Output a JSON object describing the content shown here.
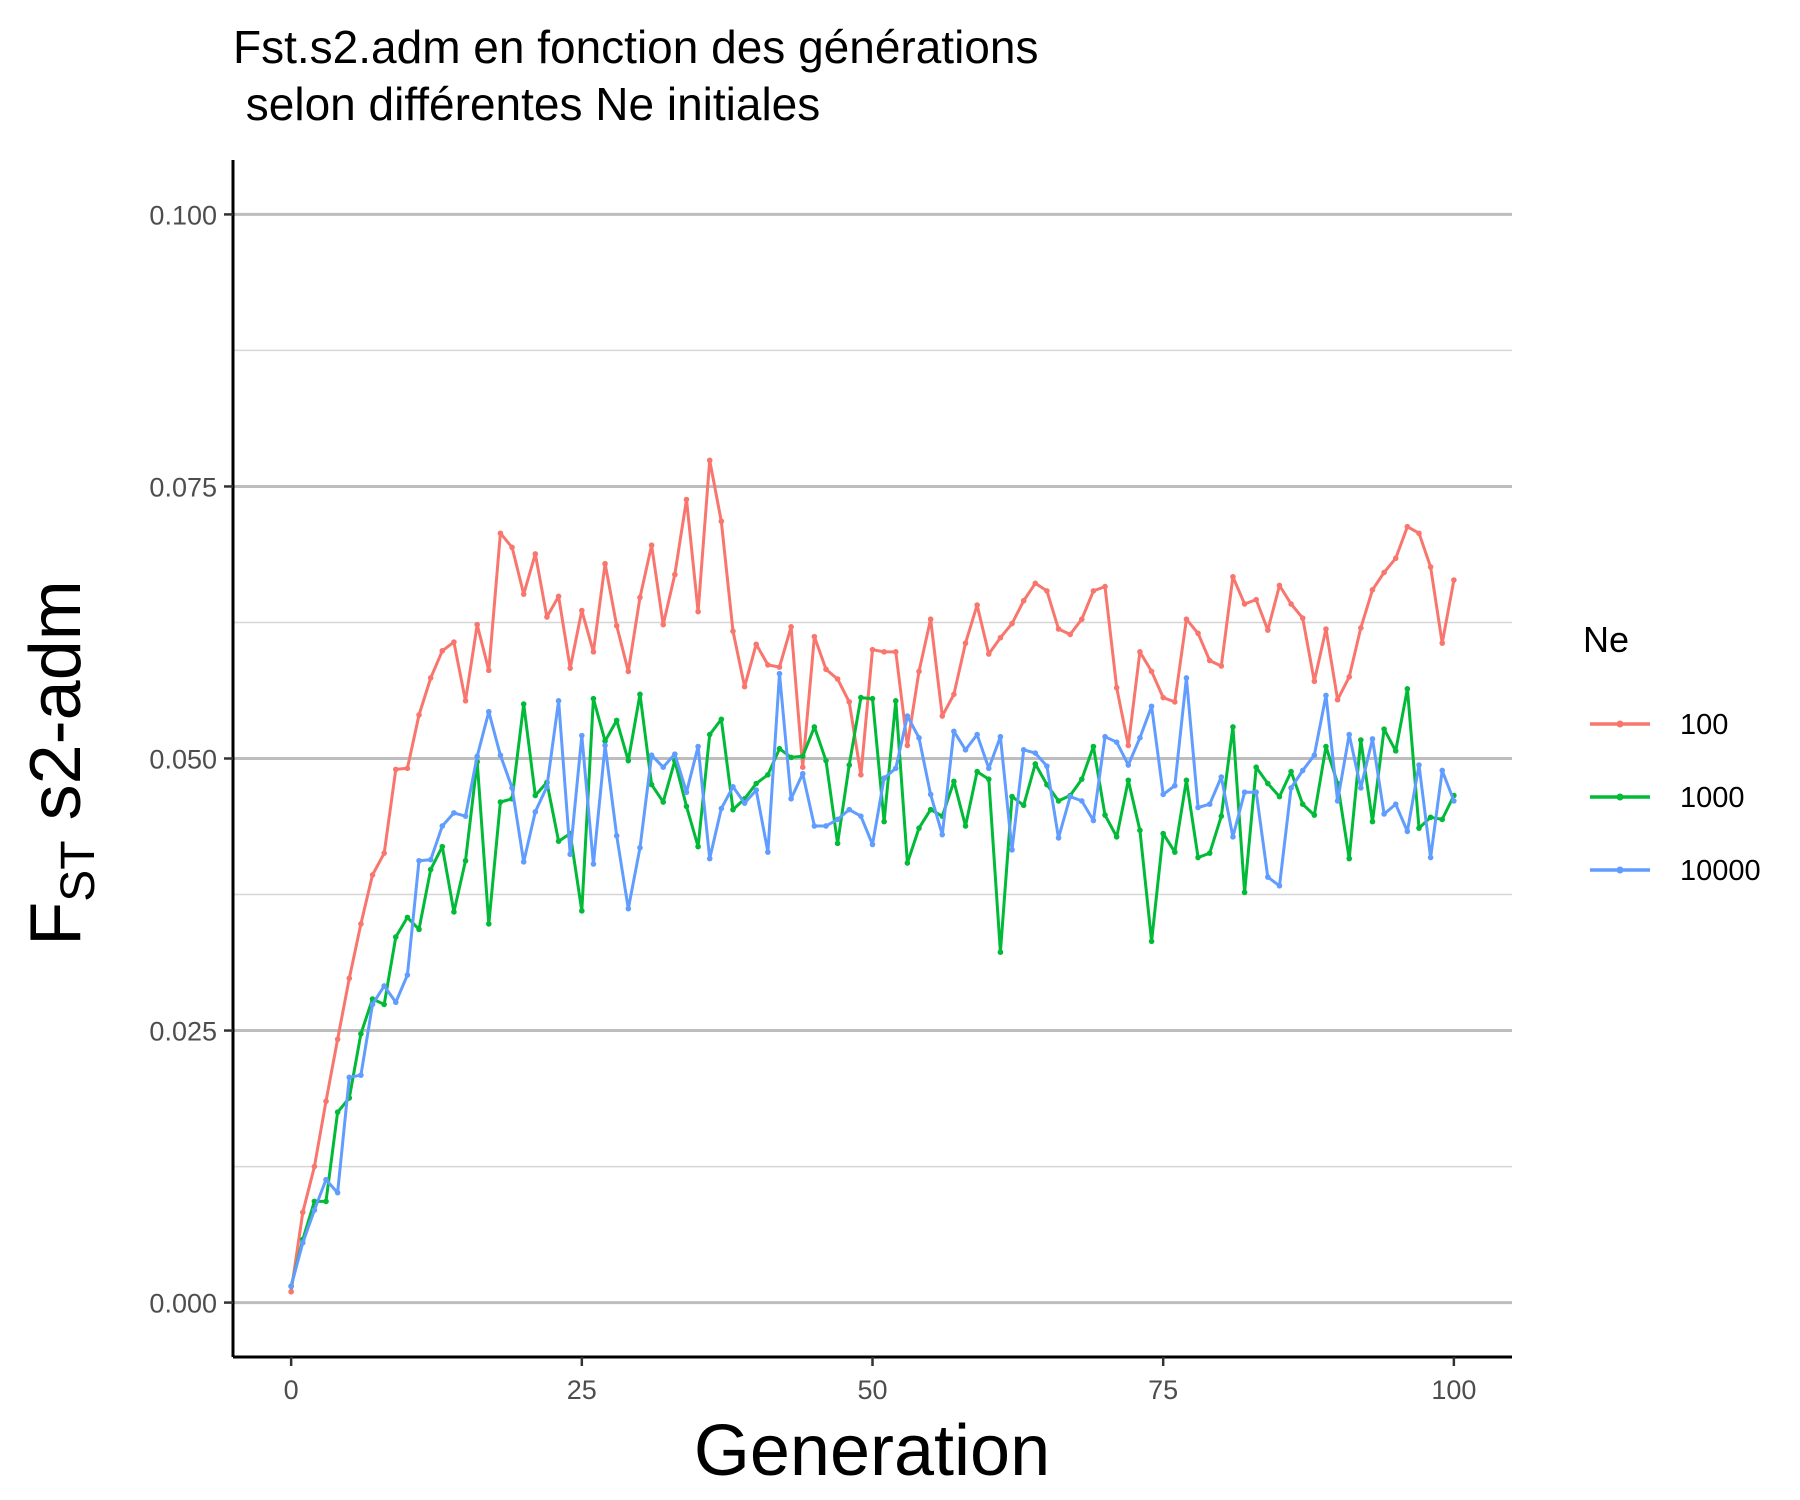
{
  "chart_data": {
    "type": "line",
    "title_line1": "Fst.s2.adm en fonction des générations",
    "title_line2": " selon différentes Ne initiales",
    "xlabel": "Generation",
    "ylabel_main": "F",
    "ylabel_sub": "ST",
    "ylabel_rest": " s2-adm",
    "xlim": [
      -5,
      105
    ],
    "ylim": [
      -0.005,
      0.105
    ],
    "x_ticks": [
      0,
      25,
      50,
      75,
      100
    ],
    "x_tick_labels": [
      "0",
      "25",
      "50",
      "75",
      "100"
    ],
    "y_ticks": [
      0,
      0.025,
      0.05,
      0.075,
      0.1
    ],
    "y_tick_labels": [
      "0.000",
      "0.025",
      "0.050",
      "0.075",
      "0.100"
    ],
    "y_minor_gridlines": [
      0.0125,
      0.0375,
      0.0625,
      0.0875
    ],
    "grid": "horizontal",
    "legend_title": "Ne",
    "legend_position": "right",
    "x": [
      0,
      1,
      2,
      3,
      4,
      5,
      6,
      7,
      8,
      9,
      10,
      11,
      12,
      13,
      14,
      15,
      16,
      17,
      18,
      19,
      20,
      21,
      22,
      23,
      24,
      25,
      26,
      27,
      28,
      29,
      30,
      31,
      32,
      33,
      34,
      35,
      36,
      37,
      38,
      39,
      40,
      41,
      42,
      43,
      44,
      45,
      46,
      47,
      48,
      49,
      50,
      51,
      52,
      53,
      54,
      55,
      56,
      57,
      58,
      59,
      60,
      61,
      62,
      63,
      64,
      65,
      66,
      67,
      68,
      69,
      70,
      71,
      72,
      73,
      74,
      75,
      76,
      77,
      78,
      79,
      80,
      81,
      82,
      83,
      84,
      85,
      86,
      87,
      88,
      89,
      90,
      91,
      92,
      93,
      94,
      95,
      96,
      97,
      98,
      99,
      100
    ],
    "series": [
      {
        "name": "100",
        "color": "#F8766D",
        "values": [
          0.001,
          0.0083,
          0.0125,
          0.0185,
          0.0242,
          0.0298,
          0.0348,
          0.0393,
          0.0413,
          0.049,
          0.0491,
          0.054,
          0.0574,
          0.0599,
          0.0607,
          0.0553,
          0.0623,
          0.0581,
          0.0707,
          0.0694,
          0.0651,
          0.0688,
          0.063,
          0.0649,
          0.0583,
          0.0636,
          0.0598,
          0.0679,
          0.0622,
          0.058,
          0.0648,
          0.0696,
          0.0623,
          0.0669,
          0.0738,
          0.0635,
          0.0774,
          0.0718,
          0.0617,
          0.0566,
          0.0605,
          0.0586,
          0.0584,
          0.0621,
          0.0492,
          0.0612,
          0.0582,
          0.0573,
          0.0552,
          0.0485,
          0.06,
          0.0598,
          0.0598,
          0.0512,
          0.058,
          0.0628,
          0.0539,
          0.0559,
          0.0606,
          0.0641,
          0.0596,
          0.0611,
          0.0624,
          0.0645,
          0.0661,
          0.0654,
          0.0619,
          0.0614,
          0.0628,
          0.0654,
          0.0658,
          0.0565,
          0.0512,
          0.0598,
          0.058,
          0.0556,
          0.0552,
          0.0628,
          0.0615,
          0.059,
          0.0585,
          0.0667,
          0.0642,
          0.0646,
          0.0618,
          0.0659,
          0.0642,
          0.0629,
          0.0571,
          0.0619,
          0.0554,
          0.0575,
          0.062,
          0.0655,
          0.0671,
          0.0684,
          0.0713,
          0.0707,
          0.0676,
          0.0606,
          0.0664
        ]
      },
      {
        "name": "1000",
        "color": "#00BA38",
        "values": [
          0.0015,
          0.0058,
          0.0093,
          0.0093,
          0.0175,
          0.0188,
          0.0247,
          0.0279,
          0.0274,
          0.0336,
          0.0354,
          0.0343,
          0.0398,
          0.0419,
          0.0359,
          0.0406,
          0.0497,
          0.0348,
          0.046,
          0.0463,
          0.055,
          0.0466,
          0.0478,
          0.0424,
          0.0431,
          0.036,
          0.0555,
          0.0516,
          0.0535,
          0.0498,
          0.0559,
          0.0476,
          0.046,
          0.0498,
          0.0456,
          0.0419,
          0.0522,
          0.0536,
          0.0453,
          0.0463,
          0.0477,
          0.0485,
          0.0509,
          0.0501,
          0.0502,
          0.0529,
          0.0498,
          0.0422,
          0.0494,
          0.0556,
          0.0555,
          0.0442,
          0.0553,
          0.0404,
          0.0436,
          0.0453,
          0.0447,
          0.0479,
          0.0438,
          0.0488,
          0.0481,
          0.0322,
          0.0465,
          0.0457,
          0.0495,
          0.0476,
          0.0461,
          0.0466,
          0.0481,
          0.0511,
          0.0448,
          0.0428,
          0.048,
          0.0434,
          0.0332,
          0.0431,
          0.0414,
          0.048,
          0.0409,
          0.0413,
          0.0447,
          0.0529,
          0.0377,
          0.0492,
          0.0477,
          0.0465,
          0.0488,
          0.0458,
          0.0448,
          0.0511,
          0.0477,
          0.0408,
          0.0517,
          0.0442,
          0.0527,
          0.0507,
          0.0564,
          0.0436,
          0.0446,
          0.0444,
          0.0466
        ]
      },
      {
        "name": "10000",
        "color": "#619CFF",
        "values": [
          0.0015,
          0.0055,
          0.0085,
          0.0113,
          0.0101,
          0.0207,
          0.0209,
          0.0274,
          0.0291,
          0.0276,
          0.0301,
          0.0406,
          0.0407,
          0.0438,
          0.045,
          0.0447,
          0.0502,
          0.0543,
          0.0503,
          0.0473,
          0.0405,
          0.0451,
          0.0474,
          0.0553,
          0.0412,
          0.0521,
          0.0403,
          0.0512,
          0.0429,
          0.0362,
          0.0418,
          0.0503,
          0.0492,
          0.0504,
          0.0469,
          0.0511,
          0.0408,
          0.0454,
          0.0474,
          0.0459,
          0.0471,
          0.0414,
          0.0578,
          0.0463,
          0.0486,
          0.0438,
          0.0438,
          0.0444,
          0.0453,
          0.0447,
          0.0421,
          0.0482,
          0.0491,
          0.0539,
          0.0519,
          0.0467,
          0.043,
          0.0525,
          0.0508,
          0.0522,
          0.0491,
          0.052,
          0.0416,
          0.0508,
          0.0505,
          0.0493,
          0.0427,
          0.0465,
          0.0461,
          0.0443,
          0.052,
          0.0515,
          0.0494,
          0.0519,
          0.0548,
          0.0467,
          0.0475,
          0.0574,
          0.0455,
          0.0458,
          0.0483,
          0.0428,
          0.0469,
          0.0469,
          0.0391,
          0.0383,
          0.0473,
          0.0489,
          0.0503,
          0.0558,
          0.0461,
          0.0522,
          0.0473,
          0.0518,
          0.0449,
          0.0458,
          0.0433,
          0.0494,
          0.0409,
          0.0489,
          0.0461
        ]
      }
    ]
  }
}
